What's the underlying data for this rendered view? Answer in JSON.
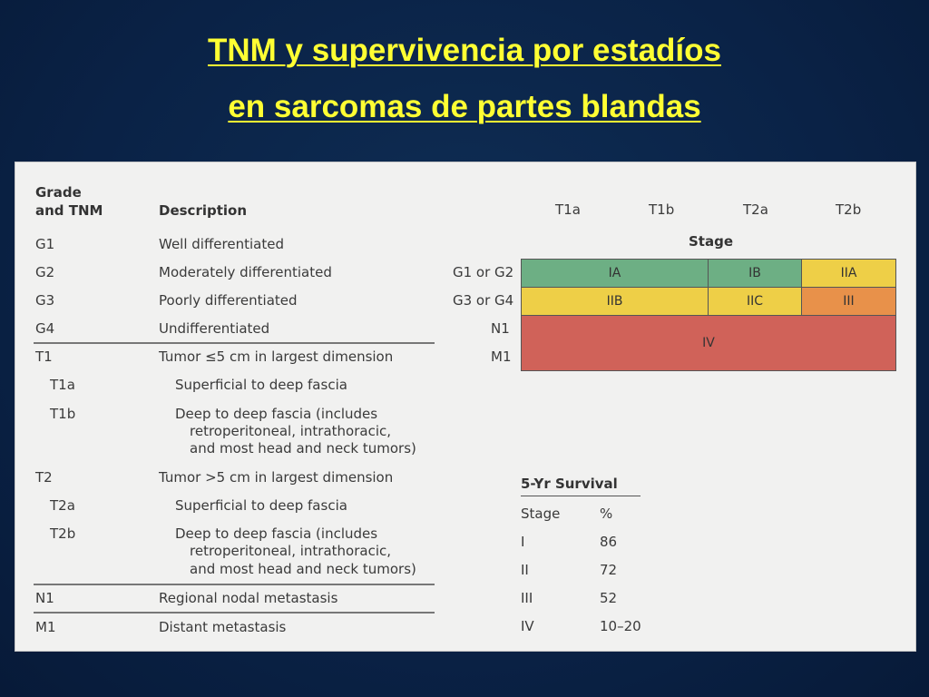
{
  "slide": {
    "title_line1": "TNM y supervivencia por estadíos",
    "title_line2": "en sarcomas de partes blandas"
  },
  "table": {
    "col_grade_line1": "Grade",
    "col_grade_line2": "and TNM",
    "col_description": "Description",
    "rows": [
      {
        "code": "G1",
        "desc": "Well differentiated"
      },
      {
        "code": "G2",
        "desc": "Moderately differentiated"
      },
      {
        "code": "G3",
        "desc": "Poorly differentiated"
      },
      {
        "code": "G4",
        "desc": "Undifferentiated"
      },
      {
        "code": "T1",
        "desc": "Tumor ≤5 cm in largest dimension"
      },
      {
        "code": "T1a",
        "desc": "Superficial to deep fascia"
      },
      {
        "code": "T1b",
        "desc": "Deep to deep fascia (includes",
        "desc2": "retroperitoneal, intrathoracic,",
        "desc3": "and most head and neck tumors)"
      },
      {
        "code": "T2",
        "desc": "Tumor >5 cm in largest dimension"
      },
      {
        "code": "T2a",
        "desc": "Superficial to deep fascia"
      },
      {
        "code": "T2b",
        "desc": "Deep to deep fascia (includes",
        "desc2": "retroperitoneal, intrathoracic,",
        "desc3": "and most head and neck tumors)"
      },
      {
        "code": "N1",
        "desc": "Regional nodal metastasis"
      },
      {
        "code": "M1",
        "desc": "Distant metastasis"
      }
    ]
  },
  "stage_grid": {
    "columns": [
      "T1a",
      "T1b",
      "T2a",
      "T2b"
    ],
    "stage_label": "Stage",
    "row_labels": [
      "G1 or G2",
      "G3 or G4",
      "N1",
      "M1"
    ],
    "cells": {
      "ia": "IA",
      "ib": "IB",
      "iia": "IIA",
      "iib": "IIB",
      "iic": "IIC",
      "iii": "III",
      "iv": "IV"
    },
    "colors": {
      "green": "#6daf84",
      "yellow": "#eecf47",
      "orange": "#e8914a",
      "red": "#d06259"
    }
  },
  "survival": {
    "title": "5-Yr Survival",
    "col_stage": "Stage",
    "col_pct": "%",
    "rows": [
      {
        "stage": "I",
        "pct": "86"
      },
      {
        "stage": "II",
        "pct": "72"
      },
      {
        "stage": "III",
        "pct": "52"
      },
      {
        "stage": "IV",
        "pct": "10–20"
      }
    ]
  }
}
